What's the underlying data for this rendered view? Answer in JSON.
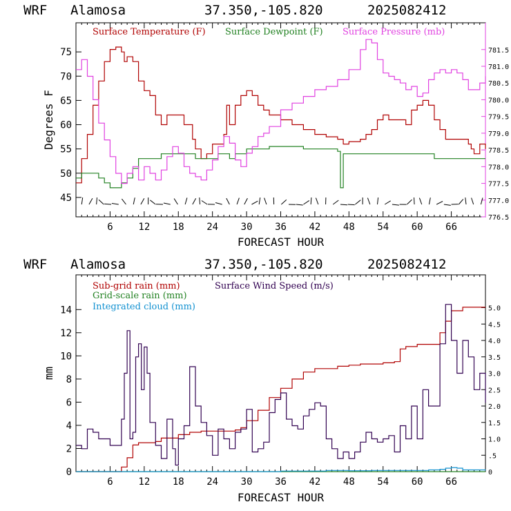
{
  "chart_data": [
    {
      "type": "line",
      "header": {
        "model": "WRF",
        "location": "Alamosa",
        "coords": "37.350,-105.820",
        "init": "2025082412"
      },
      "xlabel": "FORECAST HOUR",
      "ylabel": "Degrees F",
      "xlim": [
        0,
        72
      ],
      "ylim": [
        41,
        81
      ],
      "y2lim": [
        776.5,
        782.3
      ],
      "xticks": [
        6,
        12,
        18,
        24,
        30,
        36,
        42,
        48,
        54,
        60,
        66
      ],
      "xtick_labels": [
        "6",
        "12",
        "18",
        "24",
        "30",
        "36",
        "42",
        "48",
        "54",
        "60",
        "66"
      ],
      "yticks": [
        45,
        50,
        55,
        60,
        65,
        70,
        75
      ],
      "ytick_labels": [
        "45",
        "50",
        "55",
        "60",
        "65",
        "70",
        "75"
      ],
      "y2ticks": [
        776.5,
        777.0,
        777.5,
        778.0,
        778.5,
        779.0,
        779.5,
        780.0,
        780.5,
        781.0,
        781.5
      ],
      "y2tick_labels": [
        "776.5",
        "777.0",
        "777.5",
        "778.0",
        "778.5",
        "779.0",
        "779.5",
        "780.0",
        "780.5",
        "781.0",
        "781.5"
      ],
      "series": [
        {
          "name": "Surface Temperature (F)",
          "color": "#b00000",
          "axis": "left",
          "x": [
            0,
            1,
            2,
            3,
            4,
            5,
            6,
            7,
            8,
            8.5,
            9,
            10,
            11,
            12,
            13,
            14,
            15,
            16,
            17,
            18,
            19,
            20,
            20.5,
            21,
            22,
            23,
            24,
            25,
            26,
            26.5,
            27,
            28,
            29,
            30,
            31,
            32,
            33,
            34,
            35,
            36,
            38,
            40,
            42,
            44,
            46,
            46.5,
            47,
            48,
            50,
            51,
            52,
            53,
            54,
            55,
            56,
            57,
            58,
            59,
            59.5,
            60,
            61,
            62,
            63,
            64,
            65,
            66,
            67,
            68,
            69,
            69.5,
            70,
            71,
            72
          ],
          "values": [
            48,
            53,
            58,
            64,
            69,
            73,
            75.5,
            76,
            75,
            73,
            74,
            73,
            69,
            67,
            66,
            62,
            60,
            62,
            62,
            62,
            60,
            60,
            57,
            55,
            53,
            54,
            56,
            56,
            58,
            64,
            60,
            64,
            66,
            67,
            66,
            64,
            63,
            62,
            62,
            61,
            60,
            59,
            58,
            57.5,
            57,
            57,
            56,
            56.5,
            57,
            58,
            59,
            61,
            62,
            61,
            61,
            61,
            60,
            63,
            63,
            64,
            65,
            64,
            61,
            59,
            57,
            57,
            57,
            57,
            56,
            55,
            54,
            56,
            55
          ]
        },
        {
          "name": "Surface Dewpoint (F)",
          "color": "#208020",
          "axis": "left",
          "x": [
            0,
            1,
            2,
            3,
            4,
            5,
            6,
            7,
            8,
            9,
            10,
            11,
            12,
            13,
            14,
            15,
            16,
            17,
            18,
            19,
            20,
            21,
            22,
            23,
            24,
            25,
            26,
            27,
            28,
            30,
            32,
            34,
            36,
            38,
            40,
            42,
            44,
            46,
            46.5,
            47,
            48,
            50,
            52,
            54,
            56,
            58,
            60,
            62,
            63,
            64,
            66,
            68,
            70,
            72
          ],
          "values": [
            49,
            50,
            50,
            50,
            49,
            48,
            47,
            47,
            48,
            49,
            51,
            53,
            53,
            53,
            53,
            54,
            54,
            54,
            54,
            54,
            54,
            53,
            53,
            53,
            53,
            54,
            54,
            53,
            54,
            55,
            55,
            55.5,
            55.5,
            55.5,
            55,
            55,
            55,
            54.5,
            47,
            54,
            54,
            54,
            54,
            54,
            54,
            54,
            54,
            54,
            53,
            53,
            53,
            53,
            53,
            53
          ]
        },
        {
          "name": "Surface Pressure (mb)",
          "color": "#e040e0",
          "axis": "right",
          "x": [
            0,
            1,
            2,
            3,
            4,
            5,
            6,
            7,
            8,
            9,
            10,
            11,
            12,
            13,
            14,
            15,
            16,
            17,
            18,
            19,
            20,
            21,
            22,
            23,
            24,
            25,
            26,
            27,
            28,
            29,
            30,
            31,
            32,
            33,
            34,
            36,
            38,
            40,
            42,
            44,
            46,
            48,
            50,
            51,
            52,
            53,
            54,
            55,
            56,
            57,
            58,
            59,
            60,
            61,
            62,
            63,
            64,
            65,
            66,
            67,
            68,
            69,
            70,
            71,
            72
          ],
          "values": [
            780.9,
            781.2,
            780.7,
            780.0,
            779.3,
            778.8,
            778.3,
            777.8,
            777.5,
            777.8,
            778.0,
            777.6,
            778.0,
            777.8,
            777.6,
            777.9,
            778.3,
            778.6,
            778.4,
            778.0,
            777.8,
            777.7,
            777.6,
            777.9,
            778.2,
            778.6,
            778.9,
            778.7,
            778.2,
            778.0,
            778.4,
            778.6,
            778.9,
            779.0,
            779.2,
            779.7,
            779.9,
            780.1,
            780.3,
            780.4,
            780.6,
            780.9,
            781.5,
            781.8,
            781.7,
            781.2,
            780.8,
            780.7,
            780.6,
            780.5,
            780.3,
            780.4,
            780.1,
            780.2,
            780.6,
            780.8,
            780.9,
            780.8,
            780.9,
            780.8,
            780.6,
            780.3,
            780.3,
            780.5,
            780.7
          ]
        }
      ],
      "wind_barbs": "row of wind barbs along the bottom of the panel"
    },
    {
      "type": "line",
      "header": {
        "model": "WRF",
        "location": "Alamosa",
        "coords": "37.350,-105.820",
        "init": "2025082412"
      },
      "xlabel": "FORECAST HOUR",
      "ylabel": "mm",
      "xlim": [
        0,
        72
      ],
      "ylim": [
        0,
        17
      ],
      "y2lim": [
        0,
        6.0
      ],
      "xticks": [
        6,
        12,
        18,
        24,
        30,
        36,
        42,
        48,
        54,
        60,
        66
      ],
      "xtick_labels": [
        "6",
        "12",
        "18",
        "24",
        "30",
        "36",
        "42",
        "48",
        "54",
        "60",
        "66"
      ],
      "yticks": [
        0,
        2,
        4,
        6,
        8,
        10,
        12,
        14
      ],
      "ytick_labels": [
        "0",
        "2",
        "4",
        "6",
        "8",
        "10",
        "12",
        "14"
      ],
      "y2ticks": [
        0,
        0.5,
        1.0,
        1.5,
        2.0,
        2.5,
        3.0,
        3.5,
        4.0,
        4.5,
        5.0
      ],
      "y2tick_labels": [
        "0",
        ".5",
        "1.0",
        "1.5",
        "2.0",
        "2.5",
        "3.0",
        "3.5",
        "4.0",
        "4.5",
        "5.0"
      ],
      "series": [
        {
          "name": "Sub-grid rain (mm)",
          "color": "#b00000",
          "axis": "left",
          "x": [
            0,
            7,
            8,
            9,
            10,
            11,
            12,
            14,
            15,
            17,
            18,
            20,
            22,
            26,
            28,
            29,
            30,
            32,
            34,
            36,
            38,
            40,
            42,
            46,
            48,
            50,
            54,
            56,
            57,
            58,
            60,
            62,
            64,
            65,
            66,
            68,
            72
          ],
          "values": [
            0,
            0,
            0.4,
            1.2,
            2.3,
            2.5,
            2.5,
            2.6,
            2.9,
            2.9,
            3.2,
            3.4,
            3.5,
            3.5,
            3.6,
            3.8,
            4.4,
            5.3,
            6.4,
            7.2,
            8.0,
            8.6,
            8.9,
            9.1,
            9.2,
            9.3,
            9.4,
            9.5,
            10.6,
            10.8,
            11.0,
            11.0,
            12.0,
            13.0,
            13.9,
            14.2,
            14.2
          ]
        },
        {
          "name": "Surface Wind Speed (m/s)",
          "color": "#300050",
          "axis": "right",
          "x": [
            0,
            1,
            2,
            3,
            4,
            5,
            6,
            7,
            8,
            8.5,
            9,
            9.5,
            10,
            10.5,
            11,
            11.5,
            12,
            12.5,
            13,
            14,
            15,
            16,
            17,
            17.5,
            18,
            19,
            20,
            21,
            22,
            23,
            24,
            25,
            26,
            27,
            28,
            29,
            30,
            31,
            32,
            33,
            34,
            35,
            36,
            37,
            38,
            39,
            40,
            41,
            42,
            43,
            44,
            45,
            46,
            47,
            48,
            49,
            50,
            51,
            52,
            53,
            54,
            55,
            56,
            57,
            58,
            59,
            60,
            61,
            62,
            63,
            64,
            65,
            66,
            67,
            68,
            69,
            70,
            71,
            72
          ],
          "values": [
            0.8,
            0.7,
            1.3,
            1.2,
            1.0,
            1.0,
            0.8,
            0.8,
            1.6,
            3.0,
            4.3,
            1.0,
            1.2,
            3.5,
            3.9,
            2.5,
            3.8,
            3.0,
            1.5,
            0.8,
            0.4,
            1.6,
            0.7,
            0.2,
            1.0,
            1.4,
            3.2,
            2.0,
            1.5,
            1.1,
            0.5,
            1.3,
            1.0,
            0.7,
            1.2,
            1.3,
            1.9,
            0.6,
            0.7,
            0.9,
            1.8,
            2.2,
            2.4,
            1.6,
            1.4,
            1.3,
            1.7,
            1.9,
            2.1,
            2.0,
            1.0,
            0.7,
            0.4,
            0.6,
            0.4,
            0.6,
            0.9,
            1.2,
            1.0,
            0.9,
            1.0,
            1.1,
            0.6,
            1.4,
            1.0,
            2.0,
            1.0,
            2.5,
            2.0,
            2.0,
            3.9,
            5.1,
            4.0,
            3.0,
            4.0,
            3.5,
            2.5,
            3.0,
            2.1
          ]
        },
        {
          "name": "Grid-scale rain (mm)",
          "color": "#208020",
          "axis": "left",
          "x": [
            0,
            72
          ],
          "values": [
            0,
            0
          ]
        },
        {
          "name": "Integrated cloud (mm)",
          "color": "#1090d0",
          "axis": "left",
          "x": [
            0,
            10,
            20,
            30,
            36,
            40,
            44,
            48,
            52,
            56,
            60,
            62,
            64,
            65,
            66,
            67,
            68,
            72
          ],
          "values": [
            0,
            0,
            0,
            0,
            0.05,
            0.05,
            0.1,
            0.08,
            0.1,
            0.1,
            0.1,
            0.15,
            0.2,
            0.3,
            0.35,
            0.3,
            0.15,
            0.1
          ]
        }
      ]
    }
  ]
}
